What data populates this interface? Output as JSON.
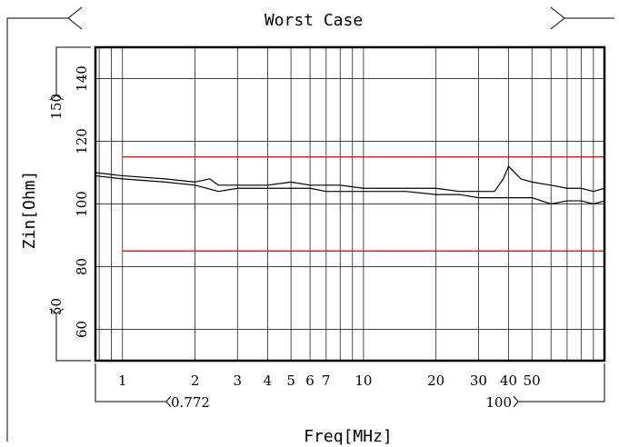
{
  "chart_data": {
    "type": "line",
    "title": "Worst Case",
    "xlabel": "Freq[MHz]",
    "ylabel": "Zin[Ohm]",
    "x_scale": "log",
    "xlim": [
      0.772,
      100
    ],
    "ylim": [
      50,
      150
    ],
    "x_ticks": [
      "1",
      "2",
      "3",
      "4",
      "5",
      "6",
      "7",
      "10",
      "20",
      "30",
      "40",
      "50"
    ],
    "y_ticks": [
      "60",
      "80",
      "100",
      "120",
      "140"
    ],
    "x_range_labels": {
      "start": "0.772",
      "end": "100"
    },
    "y_range_labels": {
      "bottom": "50",
      "top": "150"
    },
    "limits": [
      {
        "value": 115,
        "color": "#cc0000"
      },
      {
        "value": 85,
        "color": "#cc0000"
      }
    ],
    "series": [
      {
        "color": "#000000",
        "x": [
          0.772,
          1,
          1.5,
          2,
          2.3,
          2.5,
          3,
          3.5,
          4,
          5,
          6,
          7,
          8,
          10,
          12,
          15,
          20,
          25,
          30,
          35,
          38,
          40,
          45,
          50,
          60,
          70,
          80,
          90,
          100
        ],
        "values": [
          110,
          109,
          108,
          107,
          108,
          106,
          106,
          106,
          106,
          107,
          106,
          106,
          106,
          105,
          105,
          105,
          105,
          104,
          104,
          104,
          108,
          112,
          108,
          107,
          106,
          105,
          105,
          104,
          105
        ]
      },
      {
        "color": "#000000",
        "x": [
          0.772,
          1,
          1.5,
          2,
          2.5,
          3,
          4,
          5,
          6,
          7,
          8,
          10,
          12,
          15,
          20,
          25,
          30,
          35,
          40,
          45,
          50,
          60,
          70,
          80,
          90,
          100
        ],
        "values": [
          109,
          108,
          107,
          106,
          104,
          105,
          105,
          105,
          105,
          104,
          104,
          104,
          104,
          104,
          103,
          103,
          102,
          102,
          102,
          102,
          102,
          100,
          101,
          101,
          100,
          101
        ]
      }
    ]
  }
}
